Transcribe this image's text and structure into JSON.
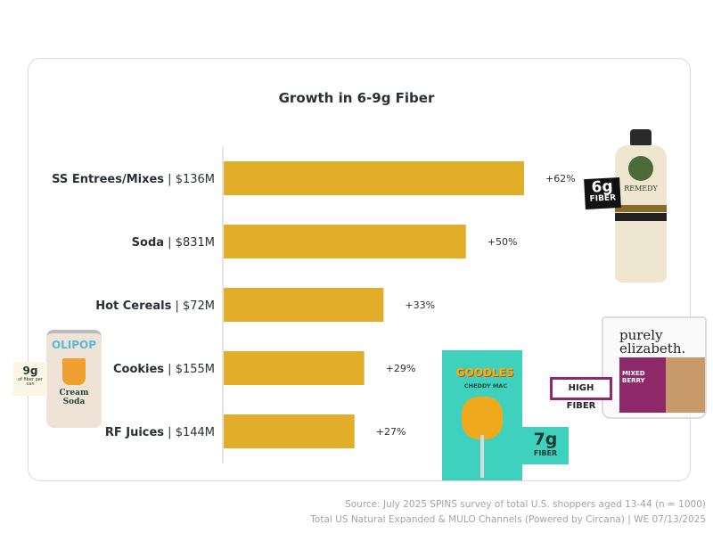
{
  "chart_data": {
    "type": "bar",
    "orientation": "horizontal",
    "title": "Growth in 6-9g Fiber",
    "categories": [
      {
        "name": "SS Entrees/Mixes",
        "sales": "$136M"
      },
      {
        "name": "Soda",
        "sales": "$831M"
      },
      {
        "name": "Hot Cereals",
        "sales": "$72M"
      },
      {
        "name": "Cookies",
        "sales": "$155M"
      },
      {
        "name": "RF Juices",
        "sales": "$144M"
      }
    ],
    "values": [
      62,
      50,
      33,
      29,
      27
    ],
    "value_labels": [
      "+62%",
      "+50%",
      "+33%",
      "+29%",
      "+27%"
    ],
    "xlim": [
      0,
      100
    ],
    "bar_color": "#e2ae2a",
    "grid": false,
    "legend": "none"
  },
  "products": {
    "remedy": {
      "brand": "REMEDY",
      "sticker_big": "6g",
      "sticker_small": "FIBER"
    },
    "purely": {
      "brand": "purely elizabeth.",
      "flavor": "MIXED BERRY",
      "sticker": "HIGH FIBER"
    },
    "goodles": {
      "brand": "GOODLES",
      "flavor": "CHEDDY MAC",
      "sticker_big": "7g",
      "sticker_small": "FIBER"
    },
    "olipop": {
      "brand": "OLIPOP",
      "flavor": "Cream Soda",
      "sticker_big": "9g",
      "sticker_small": "of fiber per can"
    }
  },
  "footer": {
    "source_line1": "Source: July 2025 SPINS survey of total U.S. shoppers aged 13-44 (n = 1000)",
    "source_line2": "Total US Natural Expanded & MULO Channels (Powered by Circana) | WE 07/13/2025"
  }
}
